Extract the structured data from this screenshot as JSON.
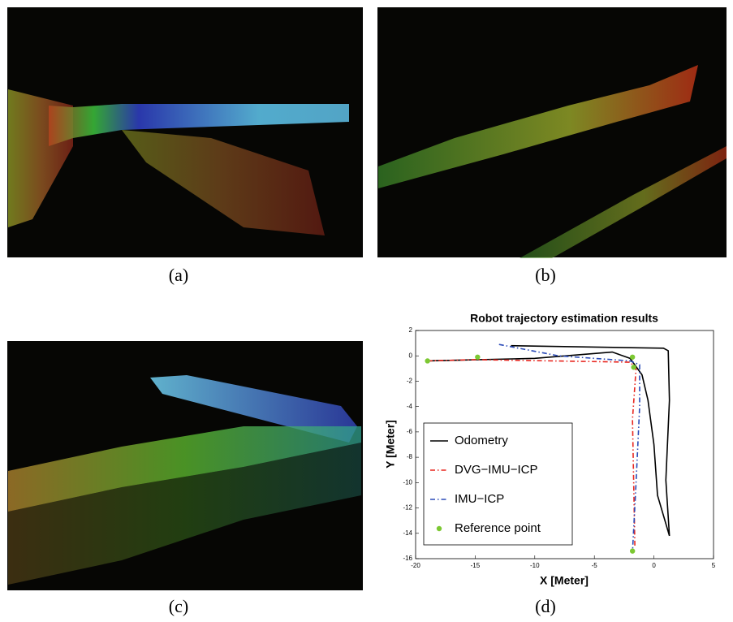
{
  "captions": [
    "(a)",
    "(b)",
    "(c)",
    "(d)"
  ],
  "chart_data": {
    "type": "line",
    "title": "Robot trajectory estimation results",
    "x_label": "X [Meter]",
    "y_label": "Y [Meter]",
    "xlim": [
      -20,
      5
    ],
    "xticks": [
      -20,
      -15,
      -10,
      -5,
      0,
      5
    ],
    "ylim": [
      -16,
      2
    ],
    "yticks": [
      -16,
      -14,
      -12,
      -10,
      -8,
      -6,
      -4,
      -2,
      0,
      2
    ],
    "legend": "lower left",
    "series": [
      {
        "name": "Odometry",
        "color": "#000000",
        "linestyle": "solid",
        "marker": "none",
        "x": [
          -19,
          -10,
          -3.5,
          -2,
          -1,
          -0.5,
          0,
          0.3,
          1.3,
          1,
          1.3,
          1.2,
          0.8,
          -12
        ],
        "values": [
          -0.4,
          -0.2,
          0.3,
          -0.2,
          -1.5,
          -3.5,
          -7,
          -11,
          -14.2,
          -9.8,
          -3.5,
          0.4,
          0.6,
          0.8
        ]
      },
      {
        "name": "DVG−IMU−ICP",
        "color": "#e8261f",
        "linestyle": "dashdot",
        "marker": "none",
        "x": [
          -19,
          -15,
          -2,
          -1.5,
          -1.8,
          -1.7,
          -1.6
        ],
        "values": [
          -0.4,
          -0.3,
          -0.5,
          -1,
          -5,
          -10,
          -15
        ]
      },
      {
        "name": "IMU−ICP",
        "color": "#2b4bb8",
        "linestyle": "dashdot",
        "marker": "none",
        "x": [
          -13,
          -8,
          -2,
          -1.2,
          -1.2,
          -1.5,
          -1.8
        ],
        "values": [
          0.9,
          0,
          -0.4,
          -0.7,
          -4,
          -10,
          -15.5
        ]
      },
      {
        "name": "Reference point",
        "color": "#7cc832",
        "linestyle": "none",
        "marker": "o",
        "x": [
          -19,
          -14.8,
          -1.8,
          -1.7,
          -1.8
        ],
        "values": [
          -0.4,
          -0.1,
          -0.1,
          -0.9,
          -15.4
        ]
      }
    ]
  }
}
